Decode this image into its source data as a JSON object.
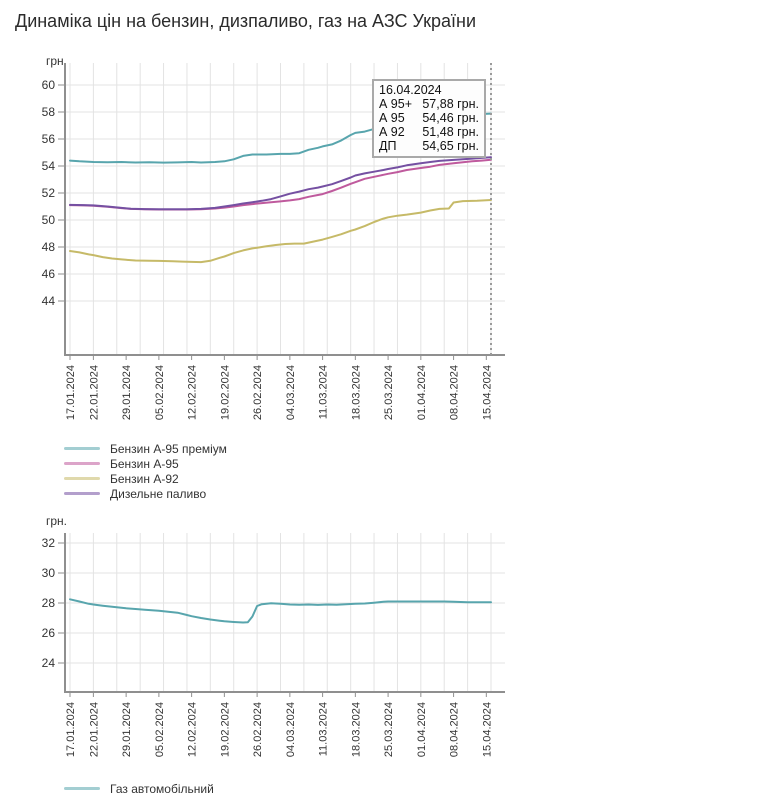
{
  "title": "Динаміка цін на бензин, дизпаливо, газ на АЗС України",
  "unit_label": "грн.",
  "colors": {
    "teal": "#58a5ad",
    "pink": "#bf5a9d",
    "yellow": "#c6ba68",
    "purple": "#7550a2",
    "grid": "#e3e3e3",
    "axis": "#8f8f8f",
    "text": "#333333",
    "cursor": "#9a9a9a"
  },
  "tooltip": {
    "date": "16.04.2024",
    "rows": [
      {
        "label": "А 95+",
        "value": "57,88 грн."
      },
      {
        "label": "А 95",
        "value": "54,46 грн."
      },
      {
        "label": "А 92",
        "value": "51,48 грн."
      },
      {
        "label": "ДП",
        "value": "54,65 грн."
      }
    ]
  },
  "chart_data": [
    {
      "type": "line",
      "unit_label": "грн.",
      "grid": true,
      "legend_position": "bottom-left",
      "x_range_days": [
        0,
        90
      ],
      "x_grid_step_days": 5,
      "x_ticks": [
        {
          "label": "17.01.2024",
          "day": 0
        },
        {
          "label": "22.01.2024",
          "day": 5
        },
        {
          "label": "29.01.2024",
          "day": 12
        },
        {
          "label": "05.02.2024",
          "day": 19
        },
        {
          "label": "12.02.2024",
          "day": 26
        },
        {
          "label": "19.02.2024",
          "day": 33
        },
        {
          "label": "26.02.2024",
          "day": 40
        },
        {
          "label": "04.03.2024",
          "day": 47
        },
        {
          "label": "11.03.2024",
          "day": 54
        },
        {
          "label": "18.03.2024",
          "day": 61
        },
        {
          "label": "25.03.2024",
          "day": 68
        },
        {
          "label": "01.04.2024",
          "day": 75
        },
        {
          "label": "08.04.2024",
          "day": 82
        },
        {
          "label": "15.04.2024",
          "day": 89
        }
      ],
      "y_ticks": [
        60,
        58,
        56,
        54,
        52,
        50,
        48,
        46,
        44
      ],
      "ylim": [
        40,
        61
      ],
      "cursor": {
        "day": 90,
        "date": "16.04.2024",
        "marker_value": 57.88,
        "marker_series": 0
      },
      "series": [
        {
          "name": "Бензин А-95 преміум",
          "color_key": "teal",
          "points": [
            [
              0,
              54.4
            ],
            [
              2,
              54.35
            ],
            [
              5,
              54.3
            ],
            [
              8,
              54.28
            ],
            [
              11,
              54.3
            ],
            [
              14,
              54.26
            ],
            [
              17,
              54.28
            ],
            [
              20,
              54.25
            ],
            [
              23,
              54.27
            ],
            [
              26,
              54.3
            ],
            [
              28,
              54.26
            ],
            [
              31,
              54.3
            ],
            [
              33,
              54.35
            ],
            [
              35,
              54.5
            ],
            [
              37,
              54.75
            ],
            [
              39,
              54.85
            ],
            [
              42,
              54.85
            ],
            [
              45,
              54.9
            ],
            [
              47,
              54.9
            ],
            [
              49,
              54.95
            ],
            [
              51,
              55.2
            ],
            [
              53,
              55.35
            ],
            [
              54,
              55.45
            ],
            [
              56,
              55.6
            ],
            [
              58,
              55.9
            ],
            [
              60,
              56.3
            ],
            [
              61,
              56.45
            ],
            [
              63,
              56.55
            ],
            [
              65,
              56.75
            ],
            [
              67,
              57.0
            ],
            [
              68,
              57.1
            ],
            [
              70,
              57.25
            ],
            [
              73,
              57.4
            ],
            [
              75,
              57.5
            ],
            [
              78,
              57.6
            ],
            [
              80,
              57.7
            ],
            [
              82,
              57.75
            ],
            [
              85,
              57.8
            ],
            [
              88,
              57.85
            ],
            [
              90,
              57.88
            ]
          ]
        },
        {
          "name": "Бензин А-95",
          "color_key": "pink",
          "points": [
            [
              0,
              51.1
            ],
            [
              3,
              51.08
            ],
            [
              5,
              51.05
            ],
            [
              8,
              50.98
            ],
            [
              11,
              50.88
            ],
            [
              13,
              50.82
            ],
            [
              16,
              50.79
            ],
            [
              19,
              50.78
            ],
            [
              22,
              50.78
            ],
            [
              25,
              50.78
            ],
            [
              28,
              50.79
            ],
            [
              31,
              50.85
            ],
            [
              33,
              50.92
            ],
            [
              35,
              51.0
            ],
            [
              37,
              51.1
            ],
            [
              39,
              51.18
            ],
            [
              41,
              51.25
            ],
            [
              43,
              51.32
            ],
            [
              45,
              51.38
            ],
            [
              47,
              51.45
            ],
            [
              49,
              51.55
            ],
            [
              51,
              51.72
            ],
            [
              53,
              51.85
            ],
            [
              54,
              51.92
            ],
            [
              56,
              52.15
            ],
            [
              58,
              52.4
            ],
            [
              60,
              52.68
            ],
            [
              61,
              52.8
            ],
            [
              63,
              53.05
            ],
            [
              65,
              53.2
            ],
            [
              67,
              53.35
            ],
            [
              68,
              53.42
            ],
            [
              70,
              53.55
            ],
            [
              72,
              53.7
            ],
            [
              75,
              53.85
            ],
            [
              77,
              53.95
            ],
            [
              79,
              54.08
            ],
            [
              82,
              54.2
            ],
            [
              84,
              54.28
            ],
            [
              86,
              54.35
            ],
            [
              88,
              54.4
            ],
            [
              90,
              54.46
            ]
          ]
        },
        {
          "name": "Бензин А-92",
          "color_key": "yellow",
          "points": [
            [
              0,
              47.7
            ],
            [
              2,
              47.6
            ],
            [
              4,
              47.45
            ],
            [
              5,
              47.4
            ],
            [
              7,
              47.25
            ],
            [
              9,
              47.15
            ],
            [
              11,
              47.08
            ],
            [
              12,
              47.05
            ],
            [
              14,
              47.0
            ],
            [
              17,
              46.98
            ],
            [
              19,
              46.97
            ],
            [
              22,
              46.95
            ],
            [
              24,
              46.92
            ],
            [
              26,
              46.9
            ],
            [
              28,
              46.88
            ],
            [
              30,
              46.98
            ],
            [
              32,
              47.2
            ],
            [
              33,
              47.3
            ],
            [
              35,
              47.55
            ],
            [
              37,
              47.75
            ],
            [
              39,
              47.9
            ],
            [
              40,
              47.95
            ],
            [
              42,
              48.05
            ],
            [
              44,
              48.15
            ],
            [
              46,
              48.22
            ],
            [
              48,
              48.25
            ],
            [
              50,
              48.25
            ],
            [
              52,
              48.4
            ],
            [
              54,
              48.55
            ],
            [
              56,
              48.75
            ],
            [
              58,
              48.95
            ],
            [
              60,
              49.2
            ],
            [
              61,
              49.3
            ],
            [
              63,
              49.55
            ],
            [
              65,
              49.85
            ],
            [
              67,
              50.1
            ],
            [
              68,
              50.2
            ],
            [
              70,
              50.32
            ],
            [
              72,
              50.4
            ],
            [
              75,
              50.55
            ],
            [
              77,
              50.7
            ],
            [
              79,
              50.82
            ],
            [
              81,
              50.85
            ],
            [
              82,
              51.3
            ],
            [
              84,
              51.4
            ],
            [
              87,
              51.42
            ],
            [
              90,
              51.48
            ]
          ]
        },
        {
          "name": "Дизельне паливо",
          "color_key": "purple",
          "points": [
            [
              0,
              51.12
            ],
            [
              3,
              51.1
            ],
            [
              5,
              51.08
            ],
            [
              8,
              51.0
            ],
            [
              11,
              50.9
            ],
            [
              13,
              50.84
            ],
            [
              16,
              50.81
            ],
            [
              19,
              50.8
            ],
            [
              22,
              50.8
            ],
            [
              25,
              50.8
            ],
            [
              28,
              50.82
            ],
            [
              31,
              50.9
            ],
            [
              33,
              51.0
            ],
            [
              35,
              51.1
            ],
            [
              37,
              51.22
            ],
            [
              39,
              51.32
            ],
            [
              41,
              51.42
            ],
            [
              43,
              51.55
            ],
            [
              45,
              51.75
            ],
            [
              47,
              51.95
            ],
            [
              49,
              52.1
            ],
            [
              51,
              52.28
            ],
            [
              53,
              52.4
            ],
            [
              54,
              52.48
            ],
            [
              56,
              52.65
            ],
            [
              58,
              52.9
            ],
            [
              60,
              53.15
            ],
            [
              61,
              53.3
            ],
            [
              63,
              53.45
            ],
            [
              65,
              53.58
            ],
            [
              67,
              53.7
            ],
            [
              68,
              53.78
            ],
            [
              70,
              53.9
            ],
            [
              72,
              54.05
            ],
            [
              75,
              54.2
            ],
            [
              77,
              54.3
            ],
            [
              79,
              54.38
            ],
            [
              82,
              54.45
            ],
            [
              84,
              54.5
            ],
            [
              86,
              54.55
            ],
            [
              88,
              54.6
            ],
            [
              90,
              54.65
            ]
          ]
        }
      ]
    },
    {
      "type": "line",
      "unit_label": "грн.",
      "grid": true,
      "legend_position": "bottom-left",
      "x_range_days": [
        0,
        90
      ],
      "x_grid_step_days": 5,
      "x_ticks": [
        {
          "label": "17.01.2024",
          "day": 0
        },
        {
          "label": "22.01.2024",
          "day": 5
        },
        {
          "label": "29.01.2024",
          "day": 12
        },
        {
          "label": "05.02.2024",
          "day": 19
        },
        {
          "label": "12.02.2024",
          "day": 26
        },
        {
          "label": "19.02.2024",
          "day": 33
        },
        {
          "label": "26.02.2024",
          "day": 40
        },
        {
          "label": "04.03.2024",
          "day": 47
        },
        {
          "label": "11.03.2024",
          "day": 54
        },
        {
          "label": "18.03.2024",
          "day": 61
        },
        {
          "label": "25.03.2024",
          "day": 68
        },
        {
          "label": "01.04.2024",
          "day": 75
        },
        {
          "label": "08.04.2024",
          "day": 82
        },
        {
          "label": "15.04.2024",
          "day": 89
        }
      ],
      "y_ticks": [
        32,
        30,
        28,
        26,
        24
      ],
      "ylim": [
        22,
        32.7
      ],
      "cursor": null,
      "series": [
        {
          "name": "Газ автомобільний",
          "color_key": "teal",
          "points": [
            [
              0,
              28.25
            ],
            [
              2,
              28.1
            ],
            [
              4,
              27.95
            ],
            [
              5,
              27.9
            ],
            [
              7,
              27.82
            ],
            [
              9,
              27.75
            ],
            [
              12,
              27.65
            ],
            [
              14,
              27.6
            ],
            [
              16,
              27.55
            ],
            [
              19,
              27.48
            ],
            [
              21,
              27.42
            ],
            [
              23,
              27.35
            ],
            [
              25,
              27.2
            ],
            [
              26,
              27.12
            ],
            [
              28,
              27.0
            ],
            [
              30,
              26.9
            ],
            [
              32,
              26.82
            ],
            [
              33,
              26.78
            ],
            [
              35,
              26.73
            ],
            [
              37,
              26.7
            ],
            [
              38,
              26.72
            ],
            [
              39,
              27.1
            ],
            [
              40,
              27.8
            ],
            [
              41,
              27.92
            ],
            [
              43,
              27.98
            ],
            [
              45,
              27.95
            ],
            [
              47,
              27.9
            ],
            [
              49,
              27.88
            ],
            [
              51,
              27.9
            ],
            [
              53,
              27.87
            ],
            [
              55,
              27.9
            ],
            [
              57,
              27.88
            ],
            [
              59,
              27.92
            ],
            [
              61,
              27.95
            ],
            [
              63,
              27.97
            ],
            [
              65,
              28.02
            ],
            [
              67,
              28.08
            ],
            [
              68,
              28.1
            ],
            [
              71,
              28.1
            ],
            [
              74,
              28.1
            ],
            [
              77,
              28.1
            ],
            [
              80,
              28.1
            ],
            [
              82,
              28.08
            ],
            [
              85,
              28.05
            ],
            [
              88,
              28.05
            ],
            [
              90,
              28.05
            ]
          ]
        }
      ]
    }
  ]
}
